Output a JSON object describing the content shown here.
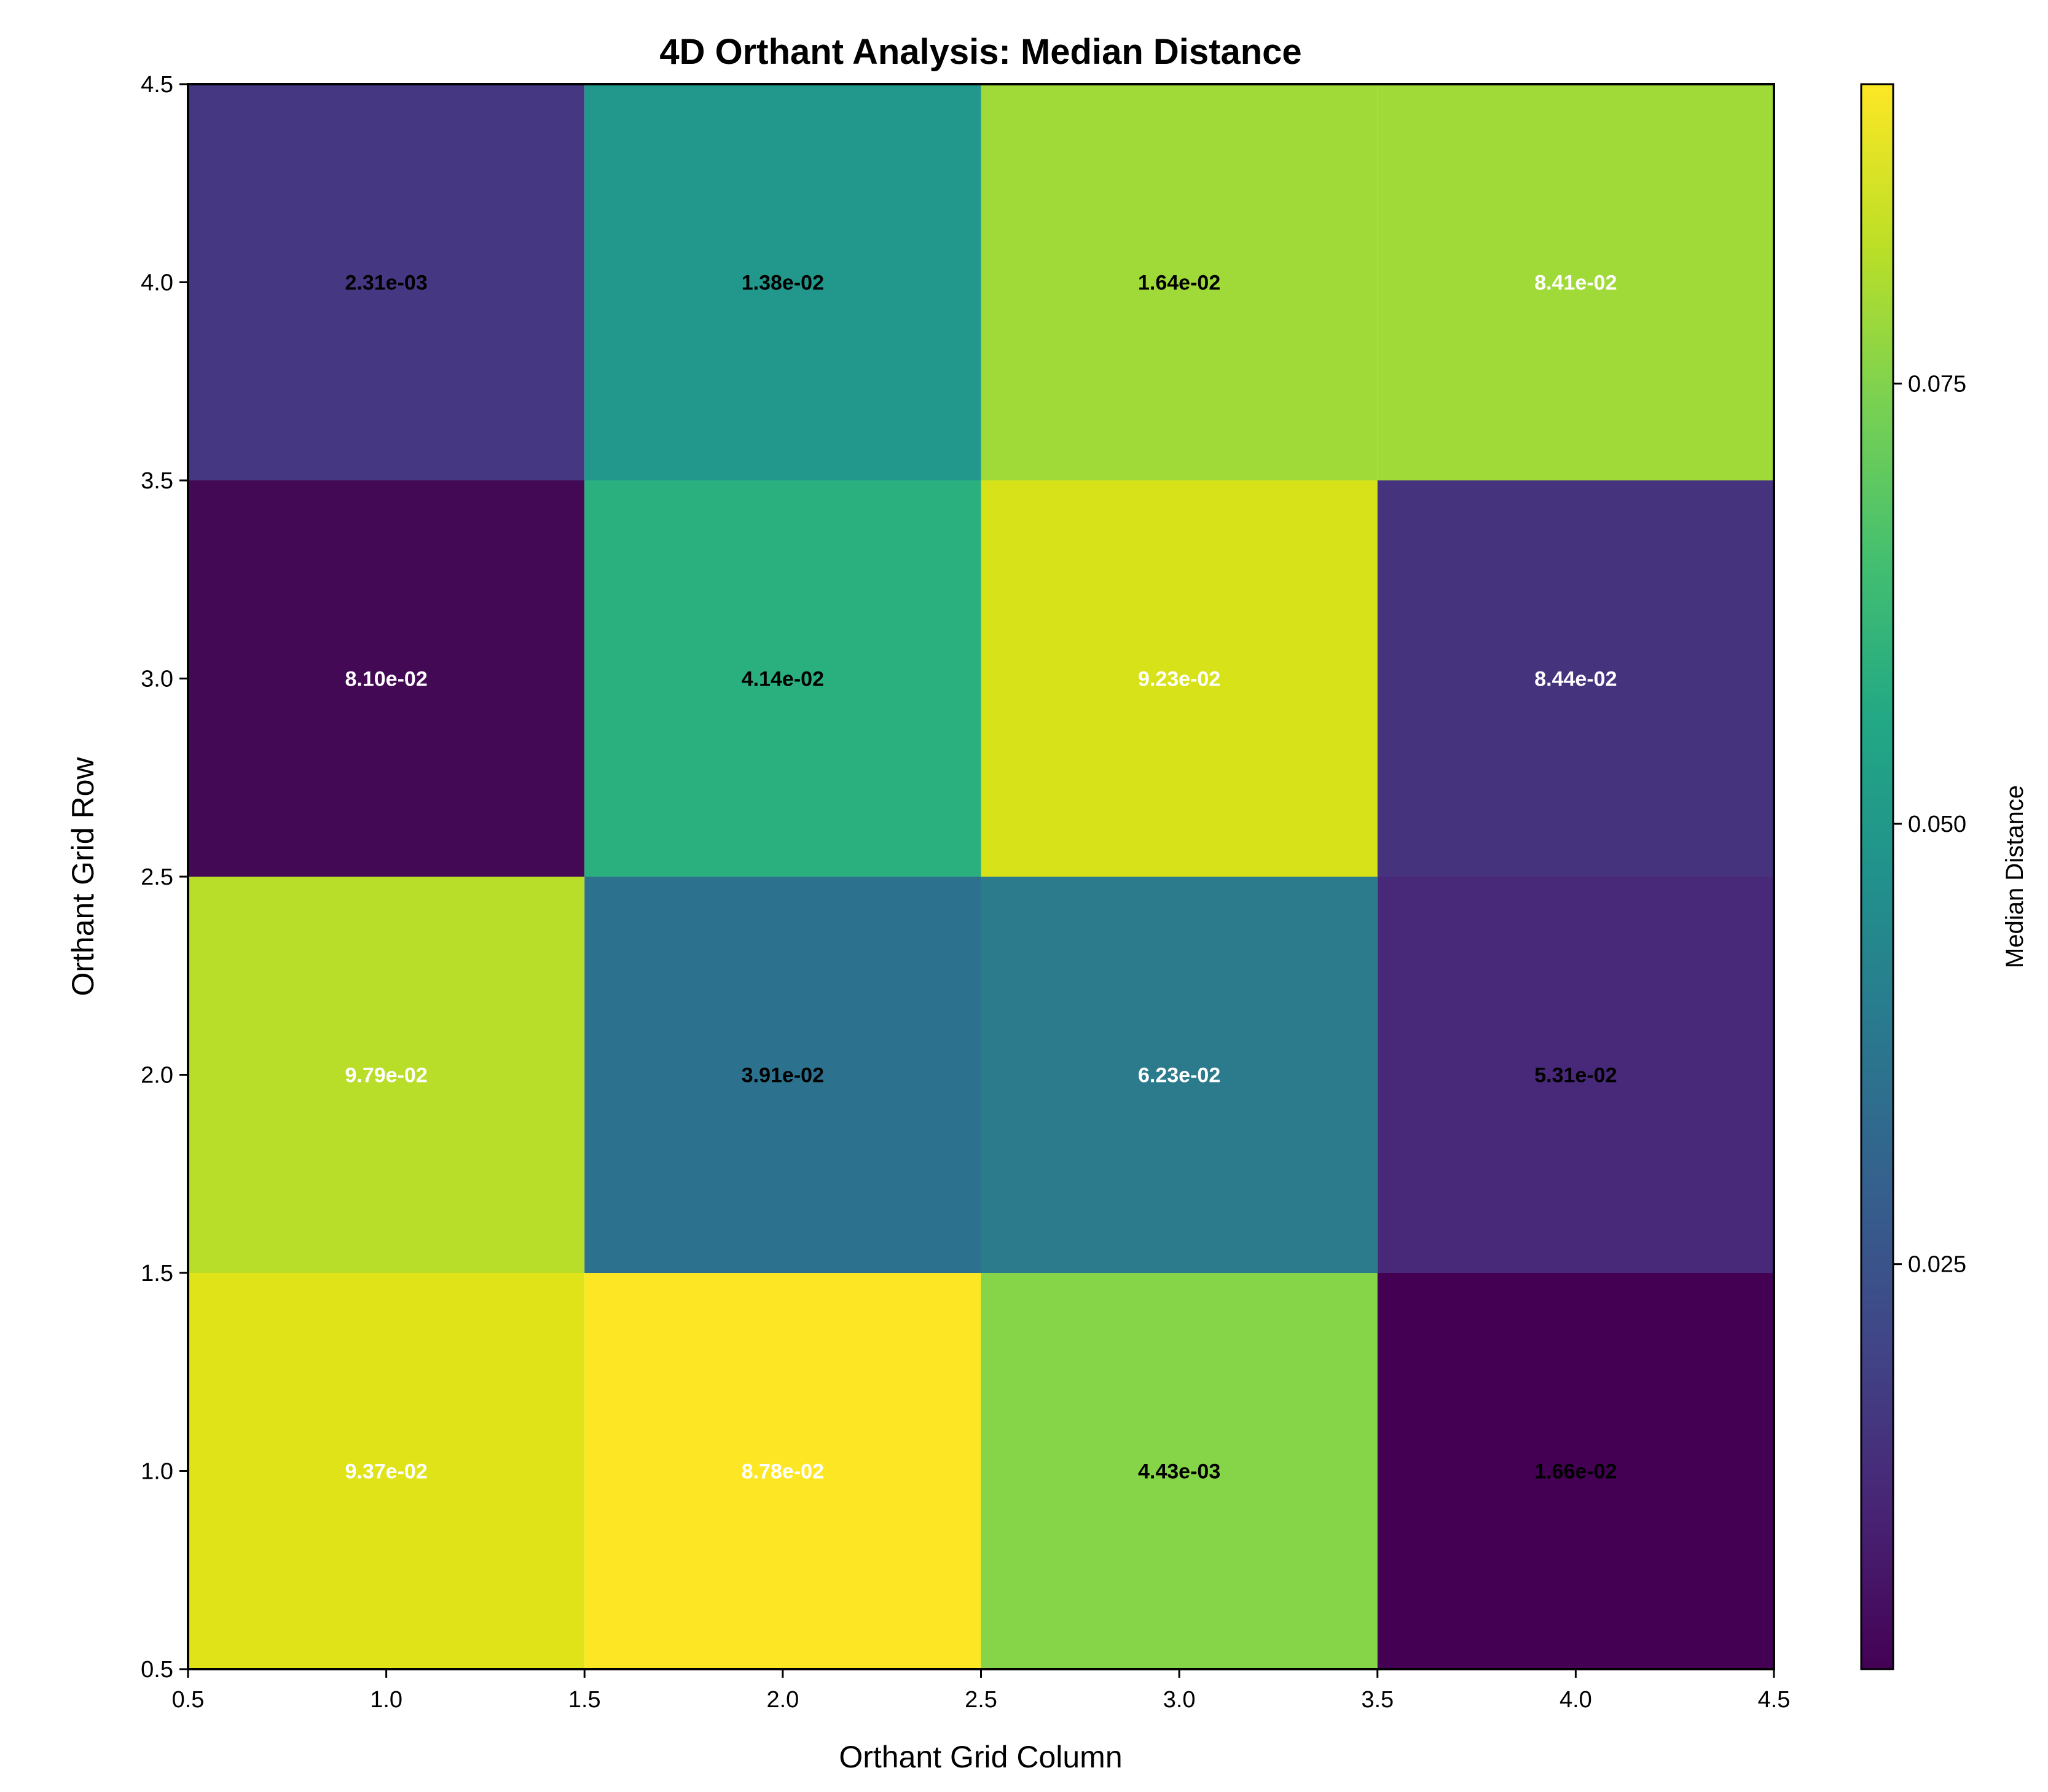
{
  "chart_data": {
    "type": "heatmap",
    "title": "4D Orthant Analysis: Median Distance",
    "xlabel": "Orthant Grid Column",
    "ylabel": "Orthant Grid Row",
    "colorbar_label": "Median Distance",
    "colormap": "viridis",
    "xlim": [
      0.5,
      4.5
    ],
    "ylim": [
      0.5,
      4.5
    ],
    "x_ticks": [
      "0.5",
      "1.0",
      "1.5",
      "2.0",
      "2.5",
      "3.0",
      "3.5",
      "4.0",
      "4.5"
    ],
    "y_ticks": [
      "0.5",
      "1.0",
      "1.5",
      "2.0",
      "2.5",
      "3.0",
      "3.5",
      "4.0",
      "4.5"
    ],
    "colorbar_range": [
      0.002,
      0.092
    ],
    "colorbar_ticks": [
      "0.025",
      "0.050",
      "0.075"
    ],
    "grid": false,
    "cells": [
      {
        "col": 1,
        "row": 4,
        "color": "#453781",
        "label": "2.31e-03",
        "label_color": "#000000"
      },
      {
        "col": 2,
        "row": 4,
        "color": "#21988b",
        "label": "1.38e-02",
        "label_color": "#000000"
      },
      {
        "col": 3,
        "row": 4,
        "color": "#a0da39",
        "label": "1.64e-02",
        "label_color": "#000000"
      },
      {
        "col": 4,
        "row": 4,
        "color": "#a0da39",
        "label": "8.41e-02",
        "label_color": "#ffffff"
      },
      {
        "col": 1,
        "row": 3,
        "color": "#440954",
        "label": "8.10e-02",
        "label_color": "#ffffff"
      },
      {
        "col": 2,
        "row": 3,
        "color": "#2ab07f",
        "label": "4.14e-02",
        "label_color": "#000000"
      },
      {
        "col": 3,
        "row": 3,
        "color": "#d8e219",
        "label": "9.23e-02",
        "label_color": "#ffffff"
      },
      {
        "col": 4,
        "row": 3,
        "color": "#46337e",
        "label": "8.44e-02",
        "label_color": "#ffffff"
      },
      {
        "col": 1,
        "row": 2,
        "color": "#b8de29",
        "label": "9.79e-02",
        "label_color": "#ffffff"
      },
      {
        "col": 2,
        "row": 2,
        "color": "#2c728e",
        "label": "3.91e-02",
        "label_color": "#000000"
      },
      {
        "col": 3,
        "row": 2,
        "color": "#2c7b8d",
        "label": "6.23e-02",
        "label_color": "#ffffff"
      },
      {
        "col": 4,
        "row": 2,
        "color": "#482878",
        "label": "5.31e-02",
        "label_color": "#000000"
      },
      {
        "col": 1,
        "row": 1,
        "color": "#dfe318",
        "label": "9.37e-02",
        "label_color": "#ffffff"
      },
      {
        "col": 2,
        "row": 1,
        "color": "#fde725",
        "label": "8.78e-02",
        "label_color": "#ffffff"
      },
      {
        "col": 3,
        "row": 1,
        "color": "#86d549",
        "label": "4.43e-03",
        "label_color": "#000000"
      },
      {
        "col": 4,
        "row": 1,
        "color": "#440154",
        "label": "1.66e-02",
        "label_color": "#000000"
      }
    ]
  }
}
